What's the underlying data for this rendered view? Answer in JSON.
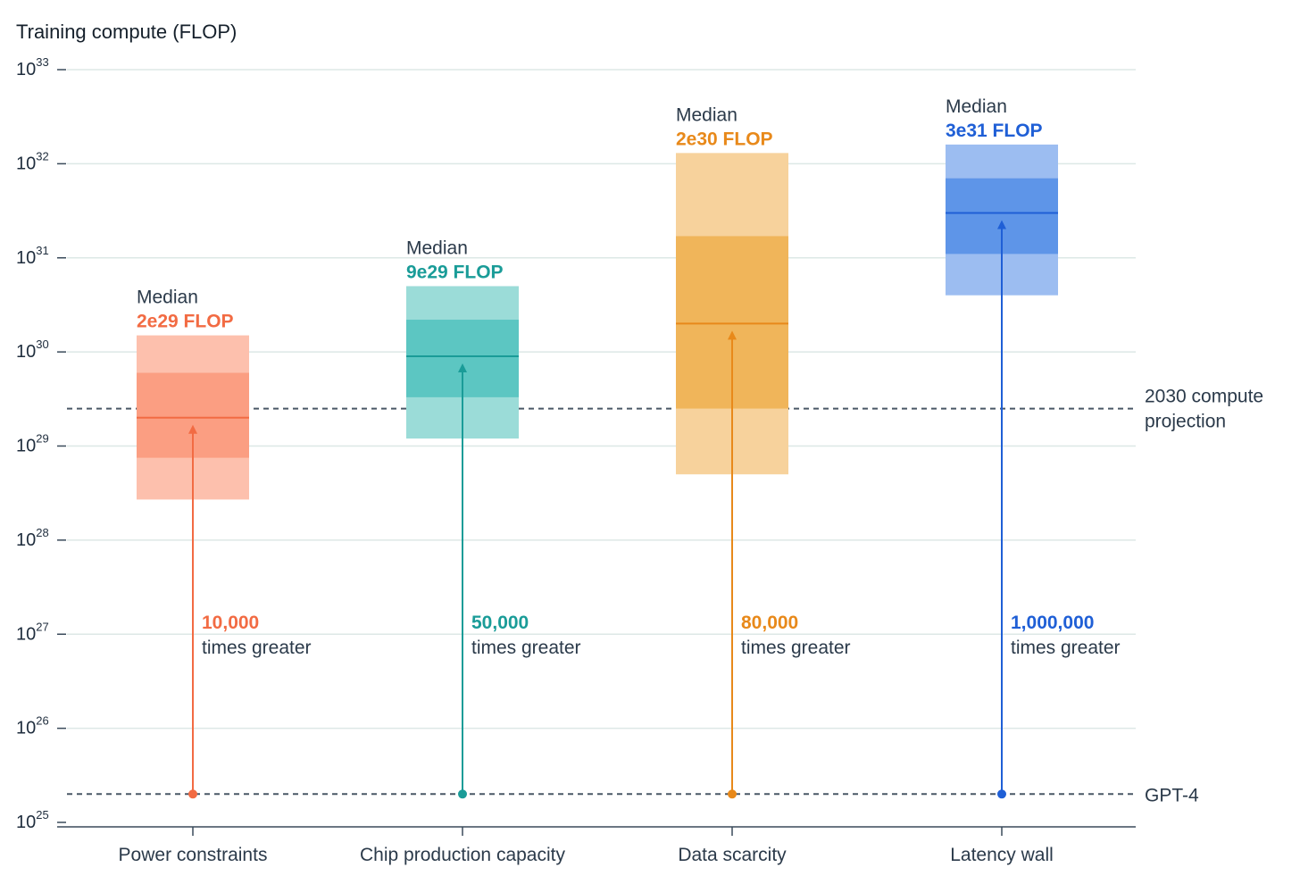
{
  "chart_data": {
    "type": "box-range",
    "ylabel": "Training compute (FLOP)",
    "yscale": "log",
    "ylim": [
      1e+25,
      1e+33
    ],
    "ytick_exponents": [
      25,
      26,
      27,
      28,
      29,
      30,
      31,
      32,
      33
    ],
    "ytick_base": "10",
    "grid": true,
    "categories": [
      "Power constraints",
      "Chip production capacity",
      "Data scarcity",
      "Latency wall"
    ],
    "series": [
      {
        "category": "Power constraints",
        "color": "#f26b43",
        "light_color": "#fdc0ad",
        "mid_color": "#fb9e82",
        "outer_low": 2.7e+28,
        "outer_high": 1.5e+30,
        "inner_low": 7.5e+28,
        "inner_high": 6e+29,
        "median": 2e+29,
        "median_caption": "Median",
        "median_label": "2e29 FLOP",
        "ratio_value": "10,000",
        "ratio_text": "times greater"
      },
      {
        "category": "Chip production capacity",
        "color": "#1a9c98",
        "light_color": "#9bdcd8",
        "mid_color": "#5cc6c2",
        "outer_low": 1.2e+29,
        "outer_high": 5e+30,
        "inner_low": 3.3e+29,
        "inner_high": 2.2e+30,
        "median": 9e+29,
        "median_caption": "Median",
        "median_label": "9e29 FLOP",
        "ratio_value": "50,000",
        "ratio_text": "times greater"
      },
      {
        "category": "Data scarcity",
        "color": "#e8891a",
        "light_color": "#f7d29c",
        "mid_color": "#f0b55a",
        "outer_low": 5e+28,
        "outer_high": 1.3e+32,
        "inner_low": 2.5e+29,
        "inner_high": 1.7e+31,
        "median": 2e+30,
        "median_caption": "Median",
        "median_label": "2e30 FLOP",
        "ratio_value": "80,000",
        "ratio_text": "times greater"
      },
      {
        "category": "Latency wall",
        "color": "#1f5fd6",
        "light_color": "#9cbdf1",
        "mid_color": "#5e95e8",
        "outer_low": 4e+30,
        "outer_high": 1.6e+32,
        "inner_low": 1.1e+31,
        "inner_high": 7e+31,
        "median": 3e+31,
        "median_caption": "Median",
        "median_label": "3e31 FLOP",
        "ratio_value": "1,000,000",
        "ratio_text": "times greater"
      }
    ],
    "reference_lines": [
      {
        "label_lines": [
          "2030 compute",
          "projection"
        ],
        "value": 2.5e+29
      },
      {
        "label_lines": [
          "GPT-4"
        ],
        "value": 2e+25
      }
    ]
  }
}
